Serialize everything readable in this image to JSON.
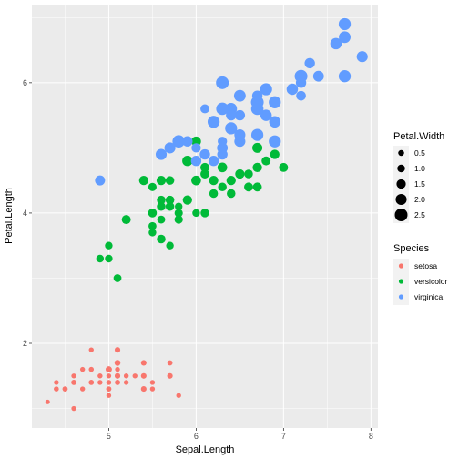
{
  "chart_data": {
    "type": "scatter",
    "xlabel": "Sepal.Length",
    "ylabel": "Petal.Length",
    "xlim": [
      4.12,
      8.08
    ],
    "ylim": [
      0.7,
      7.2
    ],
    "x_ticks": [
      5,
      6,
      7,
      8
    ],
    "y_ticks": [
      2,
      4,
      6
    ],
    "x_tick_labels": [
      "5",
      "6",
      "7",
      "8"
    ],
    "y_tick_labels": [
      "2",
      "4",
      "6"
    ],
    "grid": true,
    "size_legend": {
      "title": "Petal.Width",
      "values": [
        0.5,
        1.0,
        1.5,
        2.0,
        2.5
      ],
      "labels": [
        "0.5",
        "1.0",
        "1.5",
        "2.0",
        "2.5"
      ]
    },
    "color_legend": {
      "title": "Species",
      "labels": [
        "setosa",
        "versicolor",
        "virginica"
      ]
    },
    "colors": {
      "setosa": "#F8766D",
      "versicolor": "#00BA38",
      "virginica": "#619CFF",
      "panel": "#EBEBEB",
      "grid": "#FFFFFF"
    },
    "series": [
      {
        "name": "setosa",
        "points": [
          [
            5.1,
            1.4,
            0.2
          ],
          [
            4.9,
            1.4,
            0.2
          ],
          [
            4.7,
            1.3,
            0.2
          ],
          [
            4.6,
            1.5,
            0.2
          ],
          [
            5.0,
            1.4,
            0.2
          ],
          [
            5.4,
            1.7,
            0.4
          ],
          [
            4.6,
            1.4,
            0.3
          ],
          [
            5.0,
            1.5,
            0.2
          ],
          [
            4.4,
            1.4,
            0.2
          ],
          [
            4.9,
            1.5,
            0.1
          ],
          [
            5.4,
            1.5,
            0.2
          ],
          [
            4.8,
            1.6,
            0.2
          ],
          [
            4.8,
            1.4,
            0.1
          ],
          [
            4.3,
            1.1,
            0.1
          ],
          [
            5.8,
            1.2,
            0.2
          ],
          [
            5.7,
            1.5,
            0.4
          ],
          [
            5.4,
            1.3,
            0.4
          ],
          [
            5.1,
            1.4,
            0.3
          ],
          [
            5.7,
            1.7,
            0.3
          ],
          [
            5.1,
            1.5,
            0.3
          ],
          [
            5.4,
            1.7,
            0.2
          ],
          [
            5.1,
            1.5,
            0.4
          ],
          [
            4.6,
            1.0,
            0.2
          ],
          [
            5.1,
            1.7,
            0.5
          ],
          [
            4.8,
            1.9,
            0.2
          ],
          [
            5.0,
            1.6,
            0.2
          ],
          [
            5.0,
            1.6,
            0.4
          ],
          [
            5.2,
            1.5,
            0.2
          ],
          [
            5.2,
            1.4,
            0.2
          ],
          [
            4.7,
            1.6,
            0.2
          ],
          [
            4.8,
            1.6,
            0.2
          ],
          [
            5.4,
            1.5,
            0.4
          ],
          [
            5.2,
            1.5,
            0.1
          ],
          [
            5.5,
            1.4,
            0.2
          ],
          [
            4.9,
            1.5,
            0.2
          ],
          [
            5.0,
            1.2,
            0.2
          ],
          [
            5.5,
            1.3,
            0.2
          ],
          [
            4.9,
            1.4,
            0.1
          ],
          [
            4.4,
            1.3,
            0.2
          ],
          [
            5.1,
            1.5,
            0.2
          ],
          [
            5.0,
            1.3,
            0.3
          ],
          [
            4.5,
            1.3,
            0.3
          ],
          [
            4.4,
            1.3,
            0.2
          ],
          [
            5.0,
            1.6,
            0.6
          ],
          [
            5.1,
            1.9,
            0.4
          ],
          [
            4.8,
            1.4,
            0.3
          ],
          [
            5.1,
            1.6,
            0.2
          ],
          [
            4.6,
            1.4,
            0.2
          ],
          [
            5.3,
            1.5,
            0.2
          ],
          [
            5.0,
            1.4,
            0.2
          ]
        ]
      },
      {
        "name": "versicolor",
        "points": [
          [
            7.0,
            4.7,
            1.4
          ],
          [
            6.4,
            4.5,
            1.5
          ],
          [
            6.9,
            4.9,
            1.5
          ],
          [
            5.5,
            4.0,
            1.3
          ],
          [
            6.5,
            4.6,
            1.5
          ],
          [
            5.7,
            4.5,
            1.3
          ],
          [
            6.3,
            4.7,
            1.6
          ],
          [
            4.9,
            3.3,
            1.0
          ],
          [
            6.6,
            4.6,
            1.3
          ],
          [
            5.2,
            3.9,
            1.4
          ],
          [
            5.0,
            3.5,
            1.0
          ],
          [
            5.9,
            4.2,
            1.5
          ],
          [
            6.0,
            4.0,
            1.0
          ],
          [
            6.1,
            4.7,
            1.4
          ],
          [
            5.6,
            3.6,
            1.3
          ],
          [
            6.7,
            4.4,
            1.4
          ],
          [
            5.6,
            4.5,
            1.5
          ],
          [
            5.8,
            4.1,
            1.0
          ],
          [
            6.2,
            4.5,
            1.5
          ],
          [
            5.6,
            3.9,
            1.1
          ],
          [
            5.9,
            4.8,
            1.8
          ],
          [
            6.1,
            4.0,
            1.3
          ],
          [
            6.3,
            4.9,
            1.5
          ],
          [
            6.1,
            4.7,
            1.2
          ],
          [
            6.4,
            4.3,
            1.3
          ],
          [
            6.6,
            4.4,
            1.4
          ],
          [
            6.8,
            4.8,
            1.4
          ],
          [
            6.7,
            5.0,
            1.7
          ],
          [
            6.0,
            4.5,
            1.5
          ],
          [
            5.7,
            3.5,
            1.0
          ],
          [
            5.5,
            3.8,
            1.1
          ],
          [
            5.5,
            3.7,
            1.0
          ],
          [
            5.8,
            3.9,
            1.2
          ],
          [
            6.0,
            5.1,
            1.6
          ],
          [
            5.4,
            4.5,
            1.5
          ],
          [
            6.0,
            4.5,
            1.6
          ],
          [
            6.7,
            4.7,
            1.5
          ],
          [
            6.3,
            4.4,
            1.3
          ],
          [
            5.6,
            4.1,
            1.3
          ],
          [
            5.5,
            4.0,
            1.3
          ],
          [
            5.5,
            4.4,
            1.2
          ],
          [
            6.1,
            4.6,
            1.4
          ],
          [
            5.8,
            4.0,
            1.2
          ],
          [
            5.0,
            3.3,
            1.0
          ],
          [
            5.6,
            4.2,
            1.3
          ],
          [
            5.7,
            4.2,
            1.2
          ],
          [
            5.7,
            4.2,
            1.3
          ],
          [
            6.2,
            4.3,
            1.3
          ],
          [
            5.1,
            3.0,
            1.1
          ],
          [
            5.7,
            4.1,
            1.3
          ]
        ]
      },
      {
        "name": "virginica",
        "points": [
          [
            6.3,
            6.0,
            2.5
          ],
          [
            5.8,
            5.1,
            1.9
          ],
          [
            7.1,
            5.9,
            2.1
          ],
          [
            6.3,
            5.6,
            1.8
          ],
          [
            6.5,
            5.8,
            2.2
          ],
          [
            7.6,
            6.6,
            2.1
          ],
          [
            4.9,
            4.5,
            1.7
          ],
          [
            7.3,
            6.3,
            1.8
          ],
          [
            6.7,
            5.8,
            1.8
          ],
          [
            7.2,
            6.1,
            2.5
          ],
          [
            6.5,
            5.1,
            2.0
          ],
          [
            6.4,
            5.3,
            1.9
          ],
          [
            6.8,
            5.5,
            2.1
          ],
          [
            5.7,
            5.0,
            2.0
          ],
          [
            5.8,
            5.1,
            2.4
          ],
          [
            6.4,
            5.3,
            2.3
          ],
          [
            6.5,
            5.5,
            1.8
          ],
          [
            7.7,
            6.7,
            2.2
          ],
          [
            7.7,
            6.9,
            2.3
          ],
          [
            6.0,
            5.0,
            1.5
          ],
          [
            6.9,
            5.7,
            2.3
          ],
          [
            5.6,
            4.9,
            2.0
          ],
          [
            7.7,
            6.7,
            2.0
          ],
          [
            6.3,
            4.9,
            1.8
          ],
          [
            6.7,
            5.7,
            2.1
          ],
          [
            7.2,
            6.0,
            1.8
          ],
          [
            6.2,
            4.8,
            1.8
          ],
          [
            6.1,
            4.9,
            1.8
          ],
          [
            6.4,
            5.6,
            2.1
          ],
          [
            7.2,
            5.8,
            1.6
          ],
          [
            7.4,
            6.1,
            1.9
          ],
          [
            7.9,
            6.4,
            2.0
          ],
          [
            6.4,
            5.6,
            2.2
          ],
          [
            6.3,
            5.1,
            1.5
          ],
          [
            6.1,
            5.6,
            1.4
          ],
          [
            7.7,
            6.1,
            2.3
          ],
          [
            6.3,
            5.6,
            2.4
          ],
          [
            6.4,
            5.5,
            1.8
          ],
          [
            6.0,
            4.8,
            1.8
          ],
          [
            6.9,
            5.4,
            2.1
          ],
          [
            6.7,
            5.6,
            2.4
          ],
          [
            6.9,
            5.1,
            2.3
          ],
          [
            5.8,
            5.1,
            1.9
          ],
          [
            6.8,
            5.9,
            2.3
          ],
          [
            6.7,
            5.7,
            2.5
          ],
          [
            6.7,
            5.2,
            2.3
          ],
          [
            6.3,
            5.0,
            1.9
          ],
          [
            6.5,
            5.2,
            2.0
          ],
          [
            6.2,
            5.4,
            2.3
          ],
          [
            5.9,
            5.1,
            1.8
          ]
        ]
      }
    ]
  }
}
